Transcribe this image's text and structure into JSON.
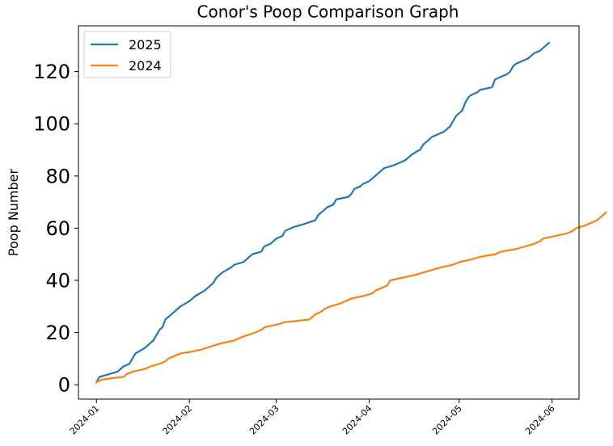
{
  "chart_data": {
    "type": "line",
    "title": "Conor's Poop Comparison Graph",
    "xlabel": "",
    "ylabel": "Poop Number",
    "x_axis": {
      "type": "date",
      "range": [
        "2023-12-26",
        "2024-06-10"
      ],
      "ticks": [
        "2024-01",
        "2024-02",
        "2024-03",
        "2024-04",
        "2024-05",
        "2024-06"
      ]
    },
    "y_axis": {
      "range": [
        -5.5,
        137.5
      ],
      "ticks": [
        0,
        20,
        40,
        60,
        80,
        100,
        120
      ]
    },
    "grid": false,
    "legend": "top-left",
    "series": [
      {
        "name": "2025",
        "color": "#1f77b4",
        "points": [
          [
            "2024-01-01",
            1
          ],
          [
            "2024-01-02",
            3
          ],
          [
            "2024-01-05",
            4
          ],
          [
            "2024-01-08",
            5
          ],
          [
            "2024-01-10",
            7
          ],
          [
            "2024-01-12",
            8
          ],
          [
            "2024-01-13",
            10
          ],
          [
            "2024-01-14",
            12
          ],
          [
            "2024-01-17",
            14
          ],
          [
            "2024-01-18",
            15
          ],
          [
            "2024-01-20",
            17
          ],
          [
            "2024-01-21",
            19
          ],
          [
            "2024-01-22",
            21
          ],
          [
            "2024-01-23",
            22
          ],
          [
            "2024-01-24",
            25
          ],
          [
            "2024-01-27",
            28
          ],
          [
            "2024-01-29",
            30
          ],
          [
            "2024-02-01",
            32
          ],
          [
            "2024-02-03",
            34
          ],
          [
            "2024-02-06",
            36
          ],
          [
            "2024-02-07",
            37
          ],
          [
            "2024-02-09",
            39
          ],
          [
            "2024-02-10",
            41
          ],
          [
            "2024-02-12",
            43
          ],
          [
            "2024-02-15",
            45
          ],
          [
            "2024-02-16",
            46
          ],
          [
            "2024-02-19",
            47
          ],
          [
            "2024-02-21",
            49
          ],
          [
            "2024-02-22",
            50
          ],
          [
            "2024-02-25",
            51
          ],
          [
            "2024-02-26",
            53
          ],
          [
            "2024-02-28",
            54
          ],
          [
            "2024-03-01",
            56
          ],
          [
            "2024-03-03",
            57
          ],
          [
            "2024-03-04",
            59
          ],
          [
            "2024-03-07",
            60.5
          ],
          [
            "2024-03-10",
            61.5
          ],
          [
            "2024-03-14",
            63
          ],
          [
            "2024-03-15",
            65
          ],
          [
            "2024-03-17",
            67
          ],
          [
            "2024-03-18",
            68
          ],
          [
            "2024-03-20",
            69
          ],
          [
            "2024-03-21",
            71
          ],
          [
            "2024-03-25",
            72
          ],
          [
            "2024-03-26",
            73
          ],
          [
            "2024-03-27",
            75
          ],
          [
            "2024-03-29",
            76
          ],
          [
            "2024-03-30",
            77
          ],
          [
            "2024-04-01",
            78
          ],
          [
            "2024-04-02",
            79
          ],
          [
            "2024-04-04",
            81
          ],
          [
            "2024-04-05",
            82
          ],
          [
            "2024-04-06",
            83
          ],
          [
            "2024-04-09",
            84
          ],
          [
            "2024-04-11",
            85
          ],
          [
            "2024-04-13",
            86
          ],
          [
            "2024-04-15",
            88
          ],
          [
            "2024-04-17",
            89.5
          ],
          [
            "2024-04-18",
            90
          ],
          [
            "2024-04-19",
            92
          ],
          [
            "2024-04-20",
            93
          ],
          [
            "2024-04-22",
            95
          ],
          [
            "2024-04-24",
            96
          ],
          [
            "2024-04-26",
            97
          ],
          [
            "2024-04-28",
            99
          ],
          [
            "2024-04-30",
            103
          ],
          [
            "2024-05-01",
            104
          ],
          [
            "2024-05-02",
            105
          ],
          [
            "2024-05-03",
            108
          ],
          [
            "2024-05-04",
            110
          ],
          [
            "2024-05-05",
            111
          ],
          [
            "2024-05-07",
            112
          ],
          [
            "2024-05-08",
            113
          ],
          [
            "2024-05-12",
            114
          ],
          [
            "2024-05-13",
            117
          ],
          [
            "2024-05-15",
            118
          ],
          [
            "2024-05-17",
            119
          ],
          [
            "2024-05-18",
            120
          ],
          [
            "2024-05-19",
            122
          ],
          [
            "2024-05-20",
            123
          ],
          [
            "2024-05-22",
            124
          ],
          [
            "2024-05-24",
            125
          ],
          [
            "2024-05-26",
            127
          ],
          [
            "2024-05-28",
            128
          ],
          [
            "2024-05-30",
            130
          ],
          [
            "2024-05-31",
            131
          ]
        ]
      },
      {
        "name": "2024",
        "color": "#ff7f0e",
        "points": [
          [
            "2024-01-01",
            1
          ],
          [
            "2024-01-03",
            2
          ],
          [
            "2024-01-06",
            2.5
          ],
          [
            "2024-01-10",
            3
          ],
          [
            "2024-01-11",
            4
          ],
          [
            "2024-01-13",
            5
          ],
          [
            "2024-01-17",
            6
          ],
          [
            "2024-01-19",
            7
          ],
          [
            "2024-01-22",
            8
          ],
          [
            "2024-01-24",
            9
          ],
          [
            "2024-01-25",
            10
          ],
          [
            "2024-01-27",
            11
          ],
          [
            "2024-01-29",
            12
          ],
          [
            "2024-02-01",
            12.5
          ],
          [
            "2024-02-05",
            13.5
          ],
          [
            "2024-02-09",
            15
          ],
          [
            "2024-02-12",
            16
          ],
          [
            "2024-02-16",
            17
          ],
          [
            "2024-02-19",
            18.5
          ],
          [
            "2024-02-23",
            20
          ],
          [
            "2024-02-25",
            21
          ],
          [
            "2024-02-26",
            22
          ],
          [
            "2024-03-01",
            23
          ],
          [
            "2024-03-04",
            24
          ],
          [
            "2024-03-12",
            25
          ],
          [
            "2024-03-14",
            27
          ],
          [
            "2024-03-16",
            28
          ],
          [
            "2024-03-17",
            29
          ],
          [
            "2024-03-19",
            30
          ],
          [
            "2024-03-22",
            31
          ],
          [
            "2024-03-24",
            32
          ],
          [
            "2024-03-26",
            33
          ],
          [
            "2024-03-30",
            34
          ],
          [
            "2024-04-02",
            35
          ],
          [
            "2024-04-03",
            36
          ],
          [
            "2024-04-05",
            37
          ],
          [
            "2024-04-07",
            38
          ],
          [
            "2024-04-08",
            40
          ],
          [
            "2024-04-12",
            41
          ],
          [
            "2024-04-16",
            42
          ],
          [
            "2024-04-19",
            43
          ],
          [
            "2024-04-22",
            44
          ],
          [
            "2024-04-25",
            45
          ],
          [
            "2024-04-29",
            46
          ],
          [
            "2024-05-01",
            47
          ],
          [
            "2024-05-05",
            48
          ],
          [
            "2024-05-08",
            49
          ],
          [
            "2024-05-13",
            50
          ],
          [
            "2024-05-15",
            51
          ],
          [
            "2024-05-20",
            52
          ],
          [
            "2024-05-23",
            53
          ],
          [
            "2024-05-26",
            54
          ],
          [
            "2024-05-28",
            55
          ],
          [
            "2024-05-29",
            56
          ],
          [
            "2024-06-02",
            57
          ],
          [
            "2024-06-06",
            58
          ],
          [
            "2024-06-08",
            59
          ],
          [
            "2024-06-09",
            60
          ],
          [
            "2024-06-12",
            61
          ],
          [
            "2024-06-14",
            62
          ],
          [
            "2024-06-16",
            63
          ],
          [
            "2024-06-17",
            64
          ],
          [
            "2024-06-19",
            66
          ]
        ]
      }
    ]
  }
}
